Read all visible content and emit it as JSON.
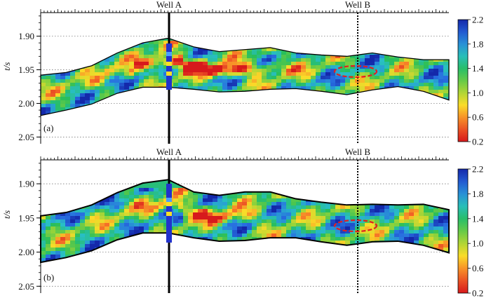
{
  "chart_data": [
    {
      "type": "heatmap",
      "panel_label": "(a)",
      "ylabel": "t/s",
      "yticks": [
        "1.90",
        "1.95",
        "2.00",
        "2.05"
      ],
      "ylim": [
        1.865,
        2.06
      ],
      "wells": [
        {
          "name": "Well A",
          "style": "solid"
        },
        {
          "name": "Well B",
          "style": "dotted"
        }
      ],
      "colorbar": {
        "min": 0.2,
        "max": 2.2,
        "ticks": [
          "2.2",
          "1.8",
          "1.4",
          "1.0",
          "0.6",
          "0.2"
        ],
        "colormap": "jet_reversed"
      },
      "layer_top_t": [
        1.958,
        1.954,
        1.944,
        1.925,
        1.91,
        1.903,
        1.916,
        1.923,
        1.92,
        1.917,
        1.925,
        1.928,
        1.93,
        1.925,
        1.931,
        1.935,
        1.935
      ],
      "layer_bottom_t": [
        2.018,
        2.01,
        2.001,
        1.985,
        1.976,
        1.976,
        1.979,
        1.983,
        1.982,
        1.979,
        1.978,
        1.982,
        1.987,
        1.98,
        1.975,
        1.982,
        1.995
      ],
      "anomaly_ellipse": {
        "near": "Well B",
        "t_center": 1.953
      }
    },
    {
      "type": "heatmap",
      "panel_label": "(b)",
      "ylabel": "t/s",
      "yticks": [
        "1.90",
        "1.95",
        "2.00",
        "2.05"
      ],
      "ylim": [
        1.865,
        2.06
      ],
      "wells": [
        {
          "name": "Well A",
          "style": "solid"
        },
        {
          "name": "Well B",
          "style": "dotted"
        }
      ],
      "colorbar": {
        "min": 0.2,
        "max": 2.2,
        "ticks": [
          "2.2",
          "1.8",
          "1.4",
          "1.0",
          "0.6",
          "0.2"
        ],
        "colormap": "jet_reversed"
      },
      "layer_top_t": [
        1.947,
        1.942,
        1.931,
        1.913,
        1.899,
        1.894,
        1.912,
        1.917,
        1.912,
        1.912,
        1.922,
        1.927,
        1.931,
        1.93,
        1.931,
        1.93,
        1.938
      ],
      "layer_bottom_t": [
        2.015,
        2.008,
        1.998,
        1.982,
        1.972,
        1.972,
        1.979,
        1.984,
        1.983,
        1.979,
        1.979,
        1.985,
        1.99,
        1.985,
        1.984,
        1.99,
        2.001
      ],
      "anomaly_ellipse": {
        "near": "Well B",
        "t_center": 1.963
      }
    }
  ]
}
